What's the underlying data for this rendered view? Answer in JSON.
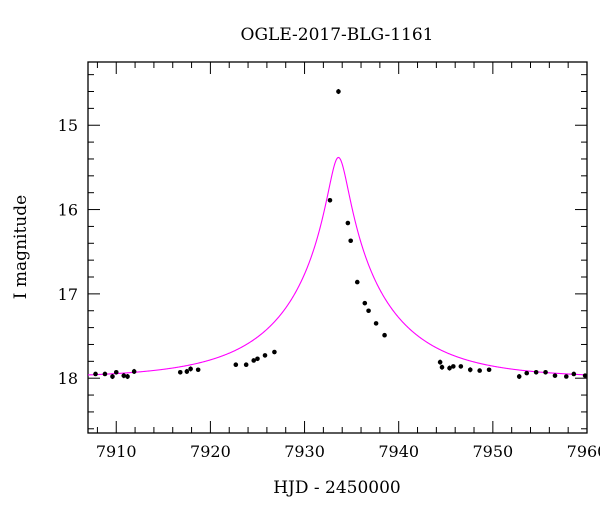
{
  "chart_data": {
    "type": "scatter",
    "title": "OGLE-2017-BLG-1161",
    "xlabel": "HJD - 2450000",
    "ylabel": "I magnitude",
    "xlim": [
      7907,
      7960
    ],
    "ylim": [
      18.65,
      14.25
    ],
    "y_inverted": true,
    "grid": false,
    "legend": "none",
    "x_ticks": [
      7910,
      7920,
      7930,
      7940,
      7950,
      7960
    ],
    "x_tick_labels": [
      "7910",
      "7920",
      "7930",
      "7940",
      "7950",
      "7960"
    ],
    "y_ticks": [
      15,
      16,
      17,
      18
    ],
    "y_tick_labels": [
      "15",
      "16",
      "17",
      "18"
    ],
    "colors": {
      "data": "#000000",
      "model": "#ff00ff"
    },
    "series": [
      {
        "kind": "points",
        "x": [
          7907.8,
          7908.8,
          7909.6,
          7910.0,
          7910.8,
          7911.2,
          7911.9,
          7916.8,
          7917.5,
          7917.9,
          7918.7,
          7922.7,
          7923.8,
          7924.6,
          7925.0,
          7925.8,
          7926.8,
          7932.7,
          7933.6,
          7934.6,
          7934.9,
          7935.6,
          7936.4,
          7936.8,
          7937.6,
          7938.5,
          7944.4,
          7944.6,
          7945.4,
          7945.8,
          7946.6,
          7947.6,
          7948.6,
          7949.6,
          7952.8,
          7953.6,
          7954.6,
          7955.6,
          7956.6,
          7957.8,
          7958.6,
          7959.8
        ],
        "y": [
          17.95,
          17.95,
          17.98,
          17.93,
          17.97,
          17.98,
          17.92,
          17.93,
          17.92,
          17.89,
          17.9,
          17.84,
          17.84,
          17.79,
          17.77,
          17.73,
          17.69,
          15.89,
          14.6,
          16.16,
          16.37,
          16.86,
          17.11,
          17.2,
          17.35,
          17.49,
          17.81,
          17.87,
          17.88,
          17.86,
          17.86,
          17.9,
          17.91,
          17.9,
          17.98,
          17.94,
          17.93,
          17.93,
          17.97,
          17.98,
          17.95,
          17.97
        ],
        "err": [
          0.02,
          0.02,
          0.03,
          0.02,
          0.03,
          0.03,
          0.03,
          0.02,
          0.03,
          0.03,
          0.02,
          0.02,
          0.02,
          0.02,
          0.02,
          0.02,
          0.02,
          0.02,
          0.03,
          0.02,
          0.02,
          0.02,
          0.02,
          0.02,
          0.02,
          0.02,
          0.03,
          0.03,
          0.03,
          0.02,
          0.02,
          0.03,
          0.02,
          0.02,
          0.03,
          0.02,
          0.02,
          0.02,
          0.02,
          0.02,
          0.02,
          0.02
        ]
      },
      {
        "kind": "model",
        "t0": 7933.6,
        "tE": 11.2,
        "u0": 0.09,
        "base_mag": 18.0
      }
    ]
  }
}
